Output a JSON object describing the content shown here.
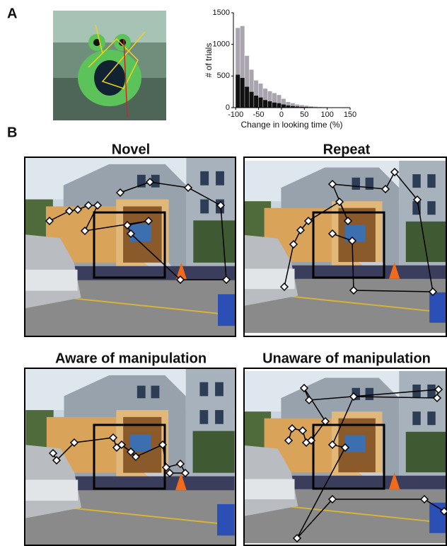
{
  "figure": {
    "panel_a": "A",
    "panel_b": "B",
    "photo_titles": [
      "Novel",
      "Repeat",
      "Aware of manipulation",
      "Unaware of manipulation"
    ]
  },
  "chart_data": {
    "type": "histogram",
    "xlabel": "Change in looking time (%)",
    "ylabel": "# of trials",
    "bins": [
      -100,
      -90,
      -80,
      -70,
      -60,
      -50,
      -40,
      -30,
      -20,
      -10,
      0,
      10,
      20,
      30,
      40,
      50,
      60,
      70,
      80,
      90,
      100
    ],
    "series": [
      {
        "color": "#a9a4ae",
        "values": [
          1260,
          1290,
          820,
          600,
          430,
          380,
          300,
          260,
          230,
          200,
          140,
          90,
          70,
          50,
          40,
          30,
          20,
          15,
          10,
          8
        ]
      },
      {
        "color": "#111111",
        "values": [
          520,
          470,
          330,
          250,
          190,
          160,
          120,
          100,
          80,
          70,
          50,
          35,
          25,
          18,
          12,
          10,
          8,
          5,
          4,
          3
        ]
      }
    ],
    "xlim": [
      -105,
      150
    ],
    "xticks": [
      -100,
      -50,
      0,
      50,
      100,
      150
    ],
    "ylim": [
      0,
      1500
    ],
    "yticks": [
      0,
      500,
      1000,
      1500
    ]
  }
}
